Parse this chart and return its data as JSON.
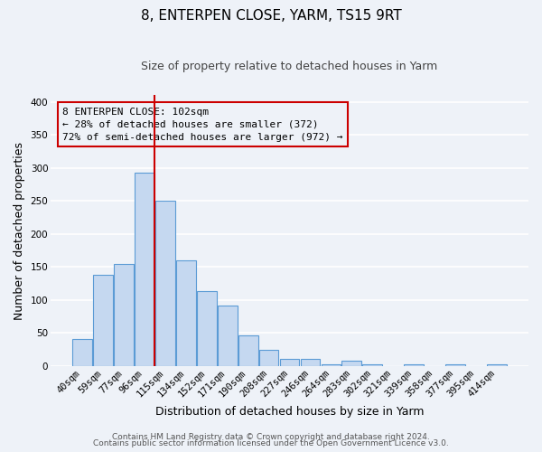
{
  "title": "8, ENTERPEN CLOSE, YARM, TS15 9RT",
  "subtitle": "Size of property relative to detached houses in Yarm",
  "xlabel": "Distribution of detached houses by size in Yarm",
  "ylabel": "Number of detached properties",
  "categories": [
    "40sqm",
    "59sqm",
    "77sqm",
    "96sqm",
    "115sqm",
    "134sqm",
    "152sqm",
    "171sqm",
    "190sqm",
    "208sqm",
    "227sqm",
    "246sqm",
    "264sqm",
    "283sqm",
    "302sqm",
    "321sqm",
    "339sqm",
    "358sqm",
    "377sqm",
    "395sqm",
    "414sqm"
  ],
  "values": [
    41,
    138,
    155,
    293,
    250,
    160,
    113,
    91,
    46,
    25,
    10,
    10,
    3,
    8,
    3,
    0,
    3,
    0,
    3,
    0,
    3
  ],
  "bar_color": "#c5d8f0",
  "bar_edge_color": "#5b9bd5",
  "vline_x": 3.5,
  "vline_color": "#cc0000",
  "ylim": [
    0,
    410
  ],
  "yticks": [
    0,
    50,
    100,
    150,
    200,
    250,
    300,
    350,
    400
  ],
  "annotation_line1": "8 ENTERPEN CLOSE: 102sqm",
  "annotation_line2": "← 28% of detached houses are smaller (372)",
  "annotation_line3": "72% of semi-detached houses are larger (972) →",
  "footer1": "Contains HM Land Registry data © Crown copyright and database right 2024.",
  "footer2": "Contains public sector information licensed under the Open Government Licence v3.0.",
  "bg_color": "#eef2f8",
  "grid_color": "#ffffff",
  "title_fontsize": 11,
  "subtitle_fontsize": 9,
  "axis_label_fontsize": 9,
  "tick_fontsize": 7.5,
  "footer_fontsize": 6.5,
  "annotation_fontsize": 8
}
